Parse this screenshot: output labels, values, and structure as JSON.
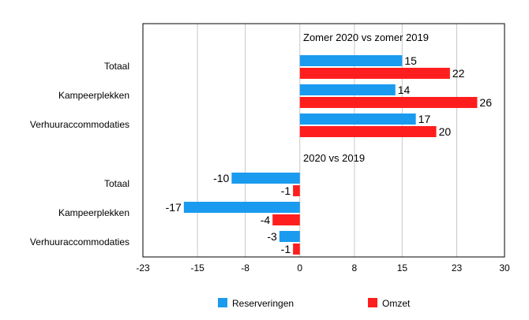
{
  "chart_data": {
    "type": "bar",
    "orientation": "horizontal",
    "x_ticks": [
      -23,
      -15,
      -8,
      0,
      8,
      15,
      23,
      30
    ],
    "xlim": [
      -23,
      30
    ],
    "grid": "vertical",
    "legend_position": "bottom",
    "series": [
      {
        "name": "Reserveringen",
        "color": "#1a9bf0"
      },
      {
        "name": "Omzet",
        "color": "#ff1e1e"
      }
    ],
    "groups": [
      {
        "annotation": "Zomer 2020 vs zomer 2019",
        "rows": [
          {
            "category": "Totaal",
            "values": [
              15,
              22
            ],
            "labels": [
              "15",
              "22"
            ]
          },
          {
            "category": "Kampeerplekken",
            "values": [
              14,
              26
            ],
            "labels": [
              "14",
              "26"
            ]
          },
          {
            "category": "Verhuuraccommodaties",
            "values": [
              17,
              20
            ],
            "labels": [
              "17",
              "20"
            ]
          }
        ]
      },
      {
        "annotation": "2020 vs 2019",
        "rows": [
          {
            "category": "Totaal",
            "values": [
              -10,
              -1
            ],
            "labels": [
              "-10",
              "-1"
            ]
          },
          {
            "category": "Kampeerplekken",
            "values": [
              -17,
              -4
            ],
            "labels": [
              "-17",
              "-4"
            ]
          },
          {
            "category": "Verhuuraccommodaties",
            "values": [
              -3,
              -1
            ],
            "labels": [
              "-3",
              "-1"
            ]
          }
        ]
      }
    ]
  }
}
